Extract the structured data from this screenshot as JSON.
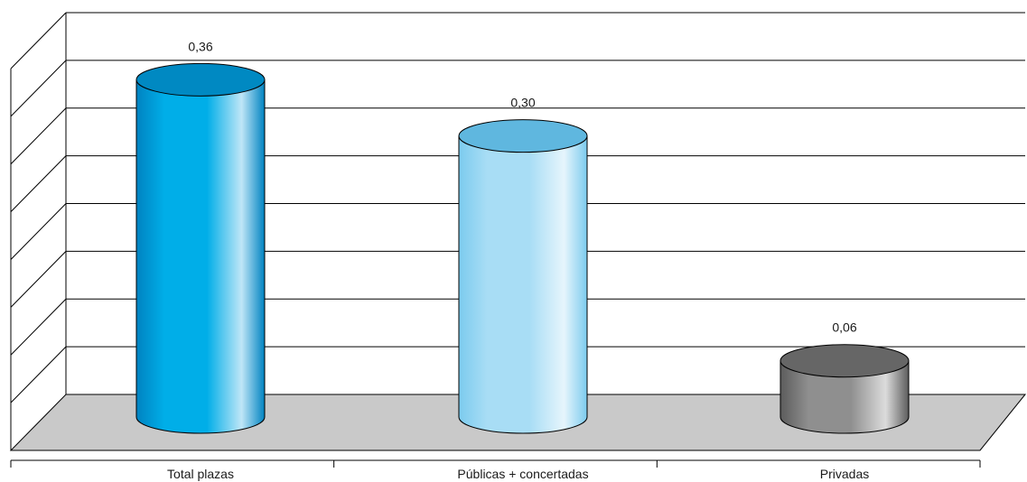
{
  "chart_data": {
    "type": "bar",
    "style": "3d-cylinder",
    "title": "",
    "xlabel": "",
    "ylabel": "",
    "categories": [
      "Total plazas",
      "Públicas + concertadas",
      "Privadas"
    ],
    "values": [
      0.36,
      0.3,
      0.06
    ],
    "value_labels": [
      "0,36",
      "0,30",
      "0,06"
    ],
    "ylim": [
      0,
      0.4
    ],
    "y_tick_step": 0.05,
    "grid": true,
    "legend": "none",
    "colors": {
      "bars": [
        {
          "dark": "#0083c1",
          "mid": "#00aee8",
          "light": "#bfe6f7",
          "top": "#0089c2"
        },
        {
          "dark": "#7ccbee",
          "mid": "#a8ddf5",
          "light": "#e6f5fc",
          "top": "#5fb7df"
        },
        {
          "dark": "#5c5c5c",
          "mid": "#8f8f8f",
          "light": "#dcdcdc",
          "top": "#666666"
        }
      ],
      "floor": "#c9c9c9",
      "grid_line": "#000000"
    }
  }
}
